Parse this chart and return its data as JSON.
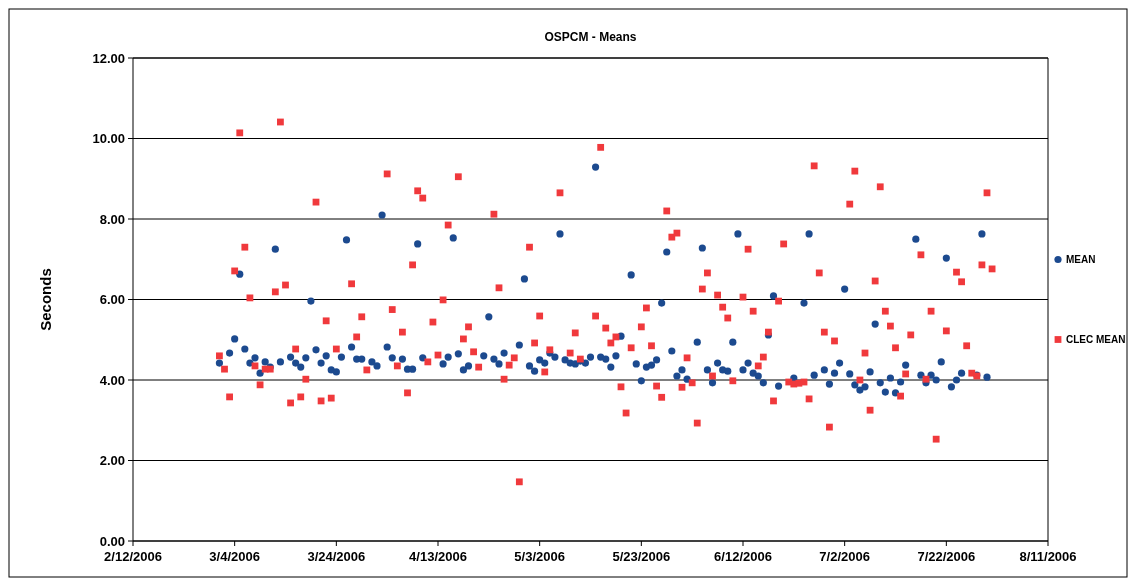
{
  "chart_data": {
    "type": "scatter",
    "title": "OSPCM - Means",
    "ylabel": "Seconds",
    "xlim": [
      "2006-02-12",
      "2006-08-11"
    ],
    "xticks": [
      {
        "value": "2006-02-12",
        "label": "2/12/2006"
      },
      {
        "value": "2006-03-04",
        "label": "3/4/2006"
      },
      {
        "value": "2006-03-24",
        "label": "3/24/2006"
      },
      {
        "value": "2006-04-13",
        "label": "4/13/2006"
      },
      {
        "value": "2006-05-03",
        "label": "5/3/2006"
      },
      {
        "value": "2006-05-23",
        "label": "5/23/2006"
      },
      {
        "value": "2006-06-12",
        "label": "6/12/2006"
      },
      {
        "value": "2006-07-02",
        "label": "7/2/2006"
      },
      {
        "value": "2006-07-22",
        "label": "7/22/2006"
      },
      {
        "value": "2006-08-11",
        "label": "8/11/2006"
      }
    ],
    "ylim": [
      0,
      12
    ],
    "yticks": [
      {
        "value": 0,
        "label": "0.00"
      },
      {
        "value": 2,
        "label": "2.00"
      },
      {
        "value": 4,
        "label": "4.00"
      },
      {
        "value": 6,
        "label": "6.00"
      },
      {
        "value": 8,
        "label": "8.00"
      },
      {
        "value": 10,
        "label": "10.00"
      },
      {
        "value": 12,
        "label": "12.00"
      }
    ],
    "grid": "y",
    "legend": "right",
    "series": [
      {
        "name": "MEAN",
        "color": "#1c4a8f",
        "marker": "circle",
        "x": [
          "2006-03-01",
          "2006-03-03",
          "2006-03-04",
          "2006-03-05",
          "2006-03-06",
          "2006-03-07",
          "2006-03-08",
          "2006-03-09",
          "2006-03-10",
          "2006-03-11",
          "2006-03-12",
          "2006-03-13",
          "2006-03-15",
          "2006-03-16",
          "2006-03-17",
          "2006-03-18",
          "2006-03-19",
          "2006-03-20",
          "2006-03-21",
          "2006-03-22",
          "2006-03-23",
          "2006-03-24",
          "2006-03-25",
          "2006-03-26",
          "2006-03-27",
          "2006-03-28",
          "2006-03-29",
          "2006-03-31",
          "2006-04-01",
          "2006-04-02",
          "2006-04-03",
          "2006-04-04",
          "2006-04-06",
          "2006-04-07",
          "2006-04-08",
          "2006-04-09",
          "2006-04-10",
          "2006-04-14",
          "2006-04-15",
          "2006-04-16",
          "2006-04-17",
          "2006-04-18",
          "2006-04-19",
          "2006-04-22",
          "2006-04-23",
          "2006-04-24",
          "2006-04-25",
          "2006-04-26",
          "2006-04-29",
          "2006-04-30",
          "2006-05-01",
          "2006-05-02",
          "2006-05-03",
          "2006-05-04",
          "2006-05-05",
          "2006-05-06",
          "2006-05-07",
          "2006-05-08",
          "2006-05-09",
          "2006-05-10",
          "2006-05-11",
          "2006-05-12",
          "2006-05-13",
          "2006-05-14",
          "2006-05-15",
          "2006-05-16",
          "2006-05-17",
          "2006-05-18",
          "2006-05-19",
          "2006-05-21",
          "2006-05-22",
          "2006-05-23",
          "2006-05-24",
          "2006-05-25",
          "2006-05-26",
          "2006-05-27",
          "2006-05-28",
          "2006-05-29",
          "2006-05-30",
          "2006-05-31",
          "2006-06-01",
          "2006-06-03",
          "2006-06-04",
          "2006-06-05",
          "2006-06-06",
          "2006-06-07",
          "2006-06-08",
          "2006-06-09",
          "2006-06-10",
          "2006-06-11",
          "2006-06-12",
          "2006-06-13",
          "2006-06-14",
          "2006-06-15",
          "2006-06-16",
          "2006-06-17",
          "2006-06-18",
          "2006-06-19",
          "2006-06-22",
          "2006-06-24",
          "2006-06-25",
          "2006-06-26",
          "2006-06-28",
          "2006-06-29",
          "2006-06-30",
          "2006-07-01",
          "2006-07-02",
          "2006-07-03",
          "2006-07-04",
          "2006-07-05",
          "2006-07-06",
          "2006-07-07",
          "2006-07-08",
          "2006-07-09",
          "2006-07-10",
          "2006-07-11",
          "2006-07-12",
          "2006-07-13",
          "2006-07-14",
          "2006-07-16",
          "2006-07-17",
          "2006-07-18",
          "2006-07-19",
          "2006-07-20",
          "2006-07-21",
          "2006-07-22",
          "2006-07-23",
          "2006-07-24",
          "2006-07-25",
          "2006-07-28",
          "2006-07-29",
          "2006-07-30"
        ],
        "values": [
          4.42,
          4.67,
          5.02,
          6.63,
          4.77,
          4.42,
          4.55,
          4.17,
          4.45,
          4.32,
          7.25,
          4.45,
          4.57,
          4.42,
          4.32,
          4.55,
          5.96,
          4.75,
          4.42,
          4.6,
          4.25,
          4.2,
          4.57,
          7.48,
          4.82,
          4.52,
          4.52,
          4.45,
          4.35,
          8.1,
          4.82,
          4.55,
          4.52,
          4.27,
          4.27,
          7.38,
          4.55,
          4.4,
          4.57,
          7.53,
          4.65,
          4.25,
          4.35,
          4.6,
          5.57,
          4.52,
          4.4,
          4.67,
          4.87,
          6.51,
          4.35,
          4.22,
          4.5,
          4.42,
          4.67,
          4.57,
          7.63,
          4.5,
          4.42,
          4.4,
          4.47,
          4.42,
          4.57,
          9.29,
          4.57,
          4.52,
          4.32,
          4.6,
          5.09,
          6.61,
          4.4,
          3.98,
          4.32,
          4.37,
          4.5,
          5.91,
          7.18,
          4.72,
          4.1,
          4.25,
          4.02,
          4.94,
          7.28,
          4.25,
          3.93,
          4.42,
          4.25,
          4.22,
          4.94,
          7.63,
          4.25,
          4.42,
          4.17,
          4.1,
          3.93,
          5.12,
          6.09,
          3.85,
          4.05,
          5.91,
          7.63,
          4.12,
          4.25,
          3.9,
          4.17,
          4.42,
          6.26,
          4.15,
          3.88,
          3.75,
          3.83,
          4.2,
          5.39,
          3.93,
          3.7,
          4.05,
          3.68,
          3.95,
          4.37,
          7.5,
          4.12,
          3.93,
          4.12,
          4.0,
          4.45,
          7.03,
          3.83,
          4.0,
          4.17,
          4.12,
          7.63,
          4.07
        ]
      },
      {
        "name": "CLEC MEAN",
        "color": "#f0393c",
        "marker": "square",
        "x": [
          "2006-03-01",
          "2006-03-02",
          "2006-03-03",
          "2006-03-04",
          "2006-03-05",
          "2006-03-06",
          "2006-03-07",
          "2006-03-08",
          "2006-03-09",
          "2006-03-10",
          "2006-03-11",
          "2006-03-12",
          "2006-03-13",
          "2006-03-14",
          "2006-03-15",
          "2006-03-16",
          "2006-03-17",
          "2006-03-18",
          "2006-03-20",
          "2006-03-21",
          "2006-03-22",
          "2006-03-23",
          "2006-03-24",
          "2006-03-27",
          "2006-03-28",
          "2006-03-29",
          "2006-03-30",
          "2006-04-03",
          "2006-04-04",
          "2006-04-05",
          "2006-04-06",
          "2006-04-07",
          "2006-04-08",
          "2006-04-09",
          "2006-04-10",
          "2006-04-11",
          "2006-04-12",
          "2006-04-13",
          "2006-04-14",
          "2006-04-15",
          "2006-04-17",
          "2006-04-18",
          "2006-04-19",
          "2006-04-20",
          "2006-04-21",
          "2006-04-24",
          "2006-04-25",
          "2006-04-26",
          "2006-04-27",
          "2006-04-28",
          "2006-04-29",
          "2006-05-01",
          "2006-05-02",
          "2006-05-03",
          "2006-05-04",
          "2006-05-05",
          "2006-05-07",
          "2006-05-09",
          "2006-05-10",
          "2006-05-11",
          "2006-05-14",
          "2006-05-15",
          "2006-05-16",
          "2006-05-17",
          "2006-05-18",
          "2006-05-19",
          "2006-05-20",
          "2006-05-21",
          "2006-05-23",
          "2006-05-24",
          "2006-05-25",
          "2006-05-26",
          "2006-05-27",
          "2006-05-28",
          "2006-05-29",
          "2006-05-30",
          "2006-05-31",
          "2006-06-01",
          "2006-06-02",
          "2006-06-03",
          "2006-06-04",
          "2006-06-05",
          "2006-06-06",
          "2006-06-07",
          "2006-06-08",
          "2006-06-09",
          "2006-06-10",
          "2006-06-12",
          "2006-06-13",
          "2006-06-14",
          "2006-06-15",
          "2006-06-16",
          "2006-06-17",
          "2006-06-18",
          "2006-06-19",
          "2006-06-20",
          "2006-06-21",
          "2006-06-22",
          "2006-06-23",
          "2006-06-24",
          "2006-06-25",
          "2006-06-26",
          "2006-06-27",
          "2006-06-28",
          "2006-06-29",
          "2006-06-30",
          "2006-07-03",
          "2006-07-04",
          "2006-07-05",
          "2006-07-06",
          "2006-07-07",
          "2006-07-08",
          "2006-07-09",
          "2006-07-10",
          "2006-07-11",
          "2006-07-12",
          "2006-07-13",
          "2006-07-14",
          "2006-07-15",
          "2006-07-17",
          "2006-07-18",
          "2006-07-19",
          "2006-07-20",
          "2006-07-22",
          "2006-07-24",
          "2006-07-25",
          "2006-07-26",
          "2006-07-27",
          "2006-07-28",
          "2006-07-29",
          "2006-07-30",
          "2006-07-31"
        ],
        "values": [
          4.6,
          4.27,
          3.58,
          6.71,
          10.14,
          7.3,
          6.04,
          4.35,
          3.88,
          4.27,
          4.27,
          6.19,
          10.41,
          6.36,
          3.43,
          4.77,
          3.58,
          4.02,
          8.42,
          3.48,
          5.47,
          3.55,
          4.77,
          6.39,
          5.07,
          5.57,
          4.25,
          9.12,
          5.75,
          4.35,
          5.19,
          3.68,
          6.86,
          8.7,
          8.52,
          4.45,
          5.44,
          4.62,
          5.99,
          7.85,
          9.05,
          5.02,
          5.32,
          4.7,
          4.32,
          8.12,
          6.29,
          4.02,
          4.37,
          4.55,
          1.47,
          7.3,
          4.92,
          5.59,
          4.2,
          4.75,
          8.65,
          4.67,
          5.17,
          4.52,
          5.59,
          9.78,
          5.29,
          4.92,
          5.07,
          3.83,
          3.18,
          4.8,
          5.32,
          5.79,
          4.85,
          3.85,
          3.57,
          8.2,
          7.55,
          7.65,
          3.82,
          4.55,
          3.93,
          2.93,
          6.26,
          6.66,
          4.1,
          6.11,
          5.81,
          5.54,
          3.98,
          6.06,
          7.25,
          5.71,
          4.35,
          4.57,
          5.19,
          3.48,
          5.96,
          7.38,
          3.95,
          3.9,
          3.92,
          3.95,
          3.53,
          9.32,
          6.66,
          5.19,
          2.83,
          4.97,
          8.37,
          9.19,
          4.0,
          4.67,
          3.25,
          6.46,
          8.8,
          5.71,
          5.34,
          4.8,
          3.6,
          4.15,
          5.12,
          7.11,
          4.02,
          5.71,
          2.53,
          5.22,
          6.68,
          6.44,
          4.85,
          4.17,
          4.1,
          6.86,
          8.65,
          6.76
        ]
      }
    ]
  }
}
